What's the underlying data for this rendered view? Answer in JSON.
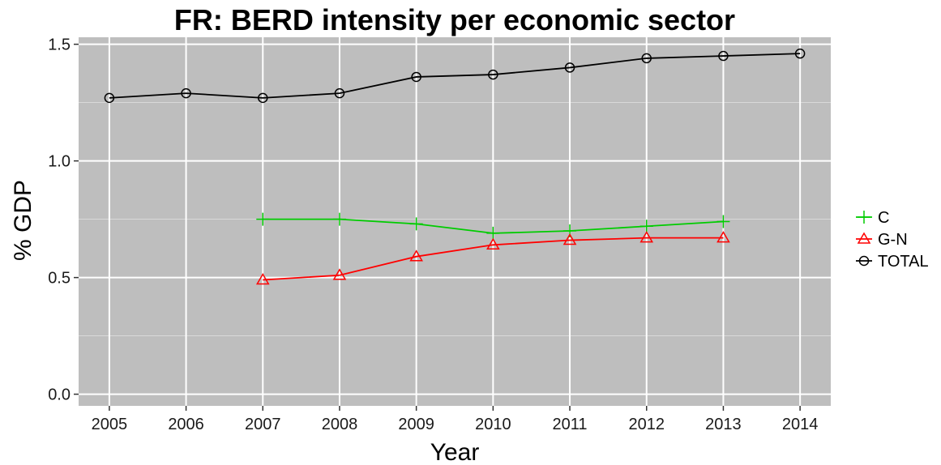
{
  "chart_data": {
    "type": "line",
    "title": "FR: BERD intensity per economic sector",
    "xlabel": "Year",
    "ylabel": "% GDP",
    "x": [
      2005,
      2006,
      2007,
      2008,
      2009,
      2010,
      2011,
      2012,
      2013,
      2014
    ],
    "x_ticks": [
      "2005",
      "2006",
      "2007",
      "2008",
      "2009",
      "2010",
      "2011",
      "2012",
      "2013",
      "2014"
    ],
    "y_ticks": [
      "0.0",
      "0.5",
      "1.0",
      "1.5"
    ],
    "xlim": [
      2004.6,
      2014.4
    ],
    "ylim": [
      -0.05,
      1.53
    ],
    "grid": true,
    "panel_background": "#BEBEBE",
    "grid_color": "#FFFFFF",
    "legend_position": "right",
    "series": [
      {
        "name": "C",
        "color": "#00CC00",
        "marker": "plus",
        "x": [
          2007,
          2008,
          2009,
          2010,
          2011,
          2012,
          2013
        ],
        "values": [
          0.75,
          0.75,
          0.73,
          0.69,
          0.7,
          0.72,
          0.74
        ]
      },
      {
        "name": "G-N",
        "color": "#FF0000",
        "marker": "triangle",
        "x": [
          2007,
          2008,
          2009,
          2010,
          2011,
          2012,
          2013
        ],
        "values": [
          0.49,
          0.51,
          0.59,
          0.64,
          0.66,
          0.67,
          0.67
        ]
      },
      {
        "name": "TOTAL",
        "color": "#000000",
        "marker": "circle",
        "x": [
          2005,
          2006,
          2007,
          2008,
          2009,
          2010,
          2011,
          2012,
          2013,
          2014
        ],
        "values": [
          1.27,
          1.29,
          1.27,
          1.29,
          1.36,
          1.37,
          1.4,
          1.44,
          1.45,
          1.46
        ]
      }
    ]
  }
}
